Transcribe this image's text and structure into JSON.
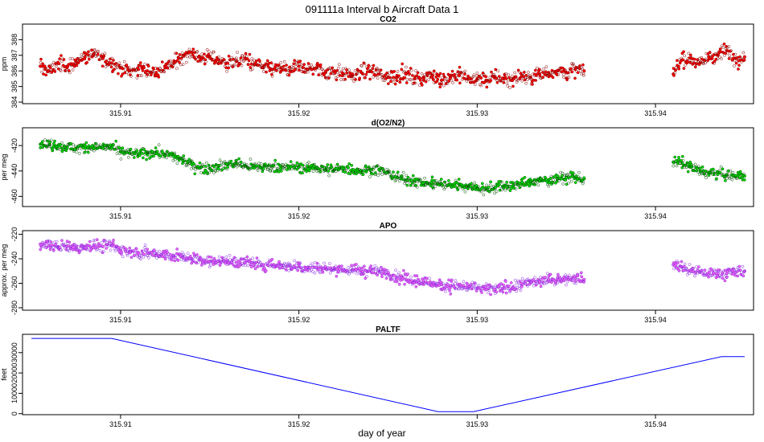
{
  "figure_title": "091111a   Interval b Aircraft Data 1",
  "xlabel": "day of year",
  "chart_data": [
    {
      "type": "scatter",
      "title": "CO2",
      "ylabel": "ppm",
      "xlim": [
        315.9045,
        315.9455
      ],
      "ylim": [
        383.9,
        389.0
      ],
      "x_ticks": [
        315.91,
        315.92,
        315.93,
        315.94
      ],
      "x_tick_labels": [
        "315.91",
        "315.92",
        "315.93",
        "315.94"
      ],
      "y_ticks": [
        384,
        385,
        386,
        387,
        388
      ],
      "y_tick_labels": [
        "384",
        "385",
        "386",
        "387",
        "388"
      ],
      "color": "#ff0000",
      "edge_color": "#8b0000",
      "series": [
        {
          "segments": [
            {
              "x": [
                315.9055,
                315.906,
                315.9065,
                315.907,
                315.9075,
                315.908,
                315.9085,
                315.909,
                315.9095,
                315.91,
                315.9105,
                315.911,
                315.9115,
                315.912,
                315.9125,
                315.913,
                315.9135,
                315.914,
                315.9145,
                315.915,
                315.9155,
                315.916,
                315.9165,
                315.917,
                315.9175,
                315.918,
                315.9185,
                315.919,
                315.9195,
                315.92,
                315.9205,
                315.921,
                315.9215,
                315.922,
                315.9225,
                315.923,
                315.9235,
                315.924,
                315.9245,
                315.925,
                315.9255,
                315.926,
                315.9265,
                315.927,
                315.9275,
                315.928,
                315.9285,
                315.929,
                315.9295,
                315.93,
                315.9305,
                315.931,
                315.9315,
                315.932,
                315.9325,
                315.933,
                315.9335,
                315.934,
                315.9345,
                315.935,
                315.9355,
                315.936
              ],
              "y": [
                386.3,
                386.0,
                386.5,
                386.2,
                386.6,
                386.9,
                387.1,
                386.8,
                386.5,
                386.2,
                386.0,
                386.1,
                386.0,
                385.9,
                386.2,
                386.5,
                387.0,
                387.2,
                386.8,
                386.9,
                386.7,
                386.5,
                386.6,
                386.8,
                386.4,
                386.2,
                386.1,
                386.2,
                386.0,
                386.3,
                386.1,
                386.2,
                385.9,
                386.0,
                385.8,
                385.7,
                385.9,
                386.0,
                385.8,
                385.6,
                385.7,
                385.8,
                385.5,
                385.6,
                385.7,
                385.4,
                385.6,
                385.7,
                385.5,
                385.5,
                385.4,
                385.6,
                385.5,
                385.5,
                385.7,
                385.6,
                385.8,
                385.9,
                386.0,
                385.9,
                386.1,
                386.0
              ]
            },
            {
              "x": [
                315.941,
                315.9415,
                315.942,
                315.9425,
                315.943,
                315.9435,
                315.944,
                315.9445,
                315.945
              ],
              "y": [
                385.8,
                386.7,
                386.8,
                386.5,
                386.9,
                387.0,
                387.3,
                386.8,
                386.9
              ]
            }
          ]
        }
      ]
    },
    {
      "type": "scatter",
      "title": "d(O2/N2)",
      "ylabel": "per meg",
      "xlim": [
        315.9045,
        315.9455
      ],
      "ylim": [
        -468,
        -406
      ],
      "x_ticks": [
        315.91,
        315.92,
        315.93,
        315.94
      ],
      "x_tick_labels": [
        "315.91",
        "315.92",
        "315.93",
        "315.94"
      ],
      "y_ticks": [
        -420,
        -440,
        -460
      ],
      "y_tick_labels": [
        "-420",
        "-440",
        "-460"
      ],
      "color": "#00e000",
      "edge_color": "#005000",
      "series": [
        {
          "segments": [
            {
              "x": [
                315.9055,
                315.906,
                315.9065,
                315.907,
                315.9075,
                315.908,
                315.9085,
                315.909,
                315.9095,
                315.91,
                315.9105,
                315.911,
                315.9115,
                315.912,
                315.9125,
                315.913,
                315.9135,
                315.914,
                315.9145,
                315.915,
                315.9155,
                315.916,
                315.9165,
                315.917,
                315.9175,
                315.918,
                315.9185,
                315.919,
                315.9195,
                315.92,
                315.9205,
                315.921,
                315.9215,
                315.922,
                315.9225,
                315.923,
                315.9235,
                315.924,
                315.9245,
                315.925,
                315.9255,
                315.926,
                315.9265,
                315.927,
                315.9275,
                315.928,
                315.9285,
                315.929,
                315.9295,
                315.93,
                315.9305,
                315.931,
                315.9315,
                315.932,
                315.9325,
                315.933,
                315.9335,
                315.934,
                315.9345,
                315.935,
                315.9355,
                315.936
              ],
              "y": [
                -419,
                -419,
                -420,
                -421,
                -422,
                -422,
                -421,
                -422,
                -421,
                -425,
                -426,
                -427,
                -426,
                -425,
                -427,
                -429,
                -432,
                -435,
                -437,
                -438,
                -436,
                -435,
                -434,
                -436,
                -437,
                -437,
                -436,
                -437,
                -437,
                -437,
                -438,
                -437,
                -439,
                -439,
                -438,
                -439,
                -440,
                -439,
                -439,
                -441,
                -445,
                -447,
                -448,
                -449,
                -450,
                -450,
                -451,
                -451,
                -452,
                -453,
                -454,
                -453,
                -452,
                -452,
                -450,
                -449,
                -448,
                -447,
                -446,
                -445,
                -445,
                -446
              ]
            },
            {
              "x": [
                315.941,
                315.9415,
                315.942,
                315.9425,
                315.943,
                315.9435,
                315.944,
                315.9445,
                315.945
              ],
              "y": [
                -433,
                -434,
                -437,
                -440,
                -442,
                -442,
                -443,
                -444,
                -444
              ]
            }
          ]
        }
      ]
    },
    {
      "type": "scatter",
      "title": "APO",
      "ylabel": "approx. per meg",
      "xlim": [
        315.9045,
        315.9455
      ],
      "ylim": [
        -282,
        -217
      ],
      "x_ticks": [
        315.91,
        315.92,
        315.93,
        315.94
      ],
      "x_tick_labels": [
        "315.91",
        "315.92",
        "315.93",
        "315.94"
      ],
      "y_ticks": [
        -220,
        -240,
        -260,
        -280
      ],
      "y_tick_labels": [
        "-220",
        "-240",
        "-260",
        "-280"
      ],
      "color": "#ee66ee",
      "edge_color": "#8a2be2",
      "series": [
        {
          "segments": [
            {
              "x": [
                315.9055,
                315.906,
                315.9065,
                315.907,
                315.9075,
                315.908,
                315.9085,
                315.909,
                315.9095,
                315.91,
                315.9105,
                315.911,
                315.9115,
                315.912,
                315.9125,
                315.913,
                315.9135,
                315.914,
                315.9145,
                315.915,
                315.9155,
                315.916,
                315.9165,
                315.917,
                315.9175,
                315.918,
                315.9185,
                315.919,
                315.9195,
                315.92,
                315.9205,
                315.921,
                315.9215,
                315.922,
                315.9225,
                315.923,
                315.9235,
                315.924,
                315.9245,
                315.925,
                315.9255,
                315.926,
                315.9265,
                315.927,
                315.9275,
                315.928,
                315.9285,
                315.929,
                315.9295,
                315.93,
                315.9305,
                315.931,
                315.9315,
                315.932,
                315.9325,
                315.933,
                315.9335,
                315.934,
                315.9345,
                315.935,
                315.9355,
                315.936
              ],
              "y": [
                -228,
                -229,
                -230,
                -230,
                -231,
                -230,
                -229,
                -230,
                -229,
                -233,
                -234,
                -235,
                -235,
                -236,
                -236,
                -238,
                -239,
                -240,
                -241,
                -242,
                -242,
                -242,
                -243,
                -243,
                -244,
                -245,
                -245,
                -245,
                -246,
                -246,
                -247,
                -247,
                -248,
                -248,
                -249,
                -249,
                -250,
                -250,
                -250,
                -252,
                -255,
                -257,
                -258,
                -259,
                -260,
                -261,
                -262,
                -262,
                -263,
                -264,
                -265,
                -265,
                -264,
                -263,
                -261,
                -259,
                -258,
                -257,
                -257,
                -256,
                -256,
                -257
              ]
            },
            {
              "x": [
                315.941,
                315.9415,
                315.942,
                315.9425,
                315.943,
                315.9435,
                315.944,
                315.9445,
                315.945
              ],
              "y": [
                -245,
                -247,
                -249,
                -251,
                -252,
                -252,
                -252,
                -251,
                -250
              ]
            }
          ]
        }
      ]
    },
    {
      "type": "line",
      "title": "PALTF",
      "ylabel": "feet",
      "xlim": [
        315.9045,
        315.9455
      ],
      "ylim": [
        -500,
        39000
      ],
      "x_ticks": [
        315.91,
        315.92,
        315.93,
        315.94
      ],
      "x_tick_labels": [
        "315.91",
        "315.92",
        "315.93",
        "315.94"
      ],
      "y_ticks": [
        0,
        10000,
        20000,
        30000
      ],
      "y_tick_labels": [
        "0",
        "10000",
        "20000",
        "30000"
      ],
      "color": "#0000ff",
      "series": [
        {
          "x": [
            315.905,
            315.9095,
            315.9278,
            315.9298,
            315.9437,
            315.945
          ],
          "y": [
            37000,
            37000,
            1000,
            1000,
            28000,
            28000
          ]
        }
      ]
    }
  ]
}
